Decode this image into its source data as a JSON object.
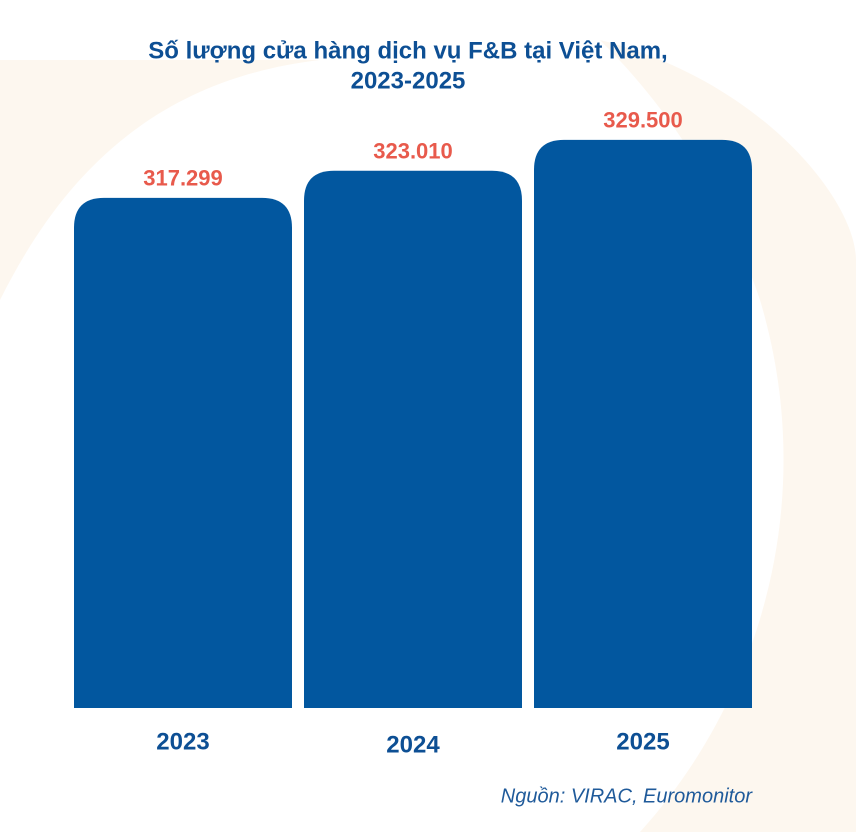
{
  "chart_data": {
    "type": "bar",
    "title": [
      "Số lượng cửa hàng dịch vụ F&B tại Việt Nam,",
      "2023-2025"
    ],
    "categories": [
      "2023",
      "2024",
      "2025"
    ],
    "values": [
      317299,
      323010,
      329500
    ],
    "value_labels": [
      "317.299",
      "323.010",
      "329.500"
    ],
    "color": "#02579f",
    "label_color": "#e85a4c",
    "ylim": [
      210000,
      340000
    ],
    "source": "Nguồn: VIRAC, Euromonitor"
  }
}
